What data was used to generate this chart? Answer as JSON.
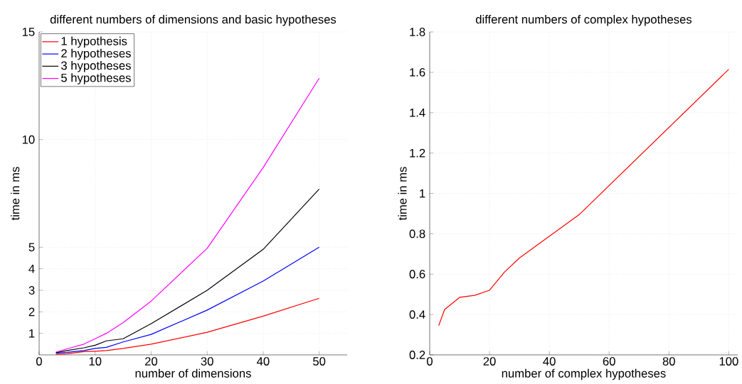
{
  "chart_data": [
    {
      "type": "line",
      "title": "different numbers of dimensions and basic hypotheses",
      "xlabel": "number of dimensions",
      "ylabel": "time in ms",
      "x": [
        3,
        5,
        8,
        10,
        12,
        15,
        20,
        30,
        40,
        50
      ],
      "series": [
        {
          "name": "1 hypothesis",
          "color": "#ff0000",
          "values": [
            0.02,
            0.05,
            0.15,
            0.17,
            0.2,
            0.3,
            0.5,
            1.05,
            1.8,
            2.63
          ]
        },
        {
          "name": "2 hypotheses",
          "color": "#0000ff",
          "values": [
            0.08,
            0.12,
            0.2,
            0.3,
            0.35,
            0.6,
            0.95,
            2.08,
            3.43,
            5.0
          ]
        },
        {
          "name": "3 hypotheses",
          "color": "#000000",
          "values": [
            0.1,
            0.2,
            0.33,
            0.45,
            0.65,
            0.75,
            1.45,
            3.0,
            4.9,
            7.7
          ]
        },
        {
          "name": "5 hypotheses",
          "color": "#ff00ff",
          "values": [
            0.13,
            0.28,
            0.5,
            0.75,
            1.0,
            1.5,
            2.5,
            4.95,
            8.7,
            12.85
          ]
        }
      ],
      "xlim": [
        0,
        55
      ],
      "ylim": [
        0,
        15
      ],
      "xticks": [
        0,
        10,
        20,
        30,
        40,
        50
      ],
      "yticks": [
        1,
        2,
        3,
        4,
        5,
        10,
        15
      ],
      "grid": true,
      "legend": "top left",
      "marker": "none",
      "line_style": "solid"
    },
    {
      "type": "line",
      "title": "different numbers of complex hypotheses",
      "xlabel": "number of complex hypotheses",
      "ylabel": "time in ms",
      "x": [
        3,
        5,
        10,
        15,
        20,
        25,
        30,
        50,
        100
      ],
      "series": [
        {
          "color": "#ff0000",
          "values": [
            0.345,
            0.425,
            0.485,
            0.495,
            0.52,
            0.61,
            0.68,
            0.895,
            1.615
          ]
        }
      ],
      "xlim": [
        0,
        103
      ],
      "ylim": [
        0.2,
        1.8
      ],
      "xticks": [
        0,
        20,
        40,
        60,
        80,
        100
      ],
      "yticks": [
        0.2,
        0.4,
        0.6,
        0.8,
        1,
        1.2,
        1.4,
        1.6,
        1.8
      ],
      "grid": true,
      "marker": "none",
      "line_style": "solid"
    }
  ]
}
